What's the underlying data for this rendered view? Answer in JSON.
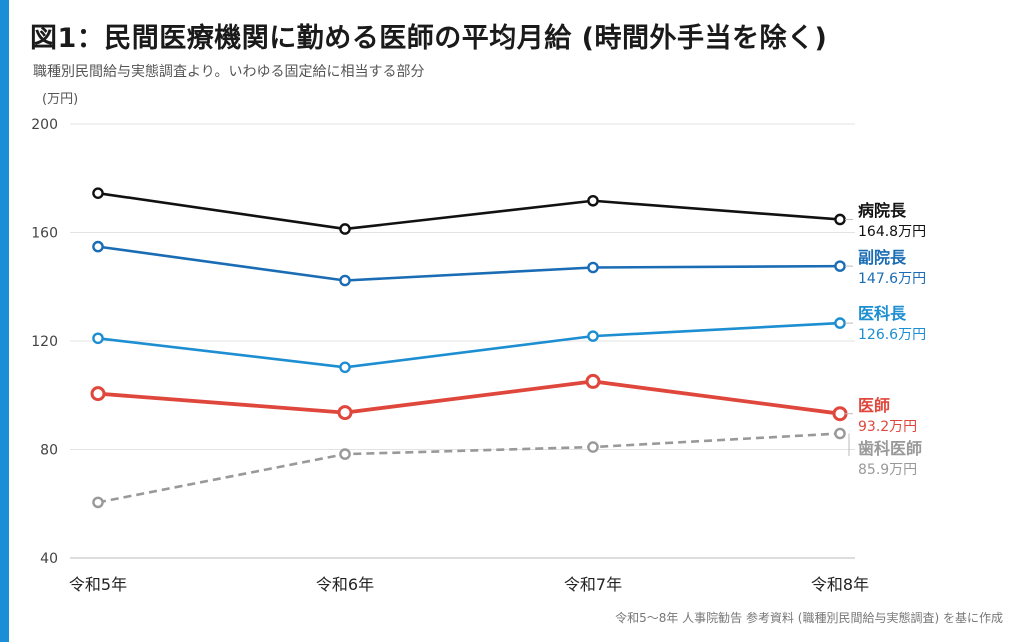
{
  "title": "図1：民間医療機関に勤める医師の平均月給 (時間外手当を除く)",
  "subtitle": "職種別民間給与実態調査より。いわゆる固定給に相当する部分",
  "source": "令和5〜8年 人事院勧告 参考資料 (職種別民間給与実態調査) を基に作成",
  "colors": {
    "accent": "#1a8fd8"
  },
  "chart_data": {
    "type": "line",
    "categories": [
      "令和5年",
      "令和6年",
      "令和7年",
      "令和8年"
    ],
    "ylabel": "(万円)",
    "ylim": [
      40,
      200
    ],
    "yticks": [
      40,
      80,
      120,
      160,
      200
    ],
    "grid": true,
    "series": [
      {
        "name": "病院長",
        "values": [
          174.5,
          161.3,
          171.7,
          164.8
        ],
        "end_label": "164.8万円",
        "color": "#111111",
        "dashed": false,
        "thick": false
      },
      {
        "name": "副院長",
        "values": [
          154.8,
          142.3,
          147.1,
          147.6
        ],
        "end_label": "147.6万円",
        "color": "#1a6cb4",
        "dashed": false,
        "thick": false
      },
      {
        "name": "医科長",
        "values": [
          121.0,
          110.3,
          121.8,
          126.6
        ],
        "end_label": "126.6万円",
        "color": "#1c8ed1",
        "dashed": false,
        "thick": false
      },
      {
        "name": "医師",
        "values": [
          100.6,
          93.6,
          105.1,
          93.2
        ],
        "end_label": "93.2万円",
        "color": "#e0473c",
        "dashed": false,
        "thick": true
      },
      {
        "name": "歯科医師",
        "values": [
          60.5,
          78.3,
          80.9,
          85.9
        ],
        "end_label": "85.9万円",
        "color": "#999999",
        "dashed": true,
        "thick": false
      }
    ]
  }
}
